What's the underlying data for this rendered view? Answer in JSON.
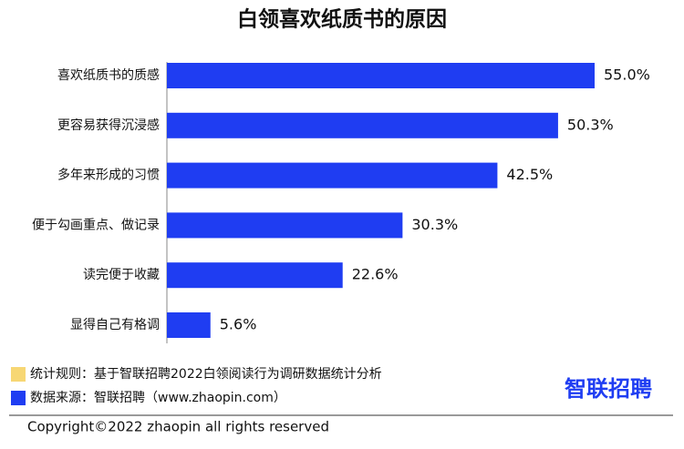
{
  "chart_data": {
    "type": "bar",
    "orientation": "horizontal",
    "title": "白领喜欢纸质书的原因",
    "categories": [
      "喜欢纸质书的质感",
      "更容易获得沉浸感",
      "多年来形成的习惯",
      "便于勾画重点、做记录",
      "读完便于收藏",
      "显得自己有格调"
    ],
    "values": [
      55.0,
      50.3,
      42.5,
      30.3,
      22.6,
      5.6
    ],
    "value_labels": [
      "55.0%",
      "50.3%",
      "42.5%",
      "30.3%",
      "22.6%",
      "5.6%"
    ],
    "color": "#1f3df2"
  },
  "notes": [
    {
      "text": "统计规则：基于智联招聘2022白领阅读行为调研数据统计分析",
      "color": "#f7d774"
    },
    {
      "text": "数据来源：智联招聘（www.zhaopin.com）",
      "color": "#1f3df2"
    }
  ],
  "logo": "智联招聘",
  "copyright": "Copyright©2022 zhaopin all rights reserved"
}
